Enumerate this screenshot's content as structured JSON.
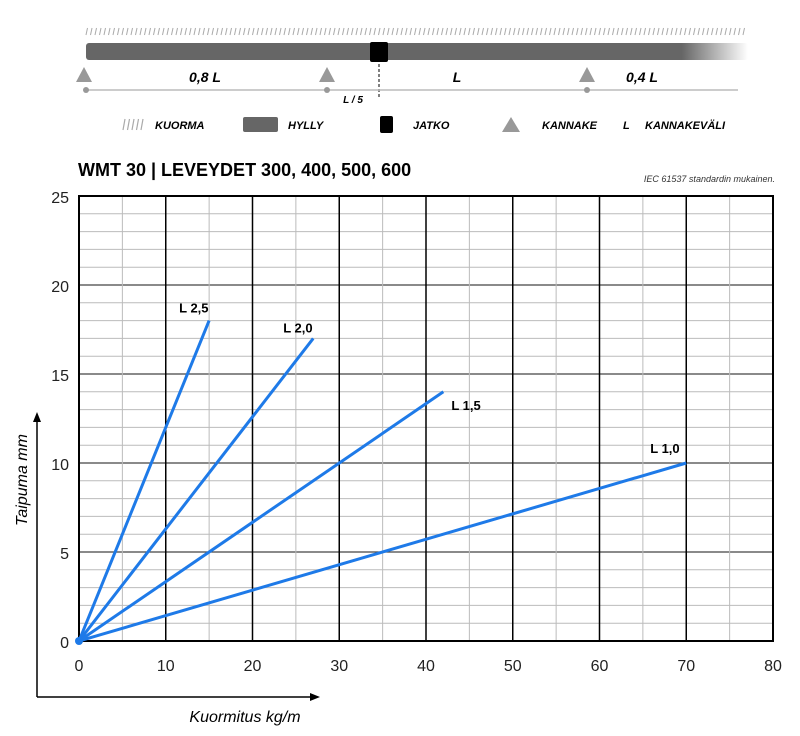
{
  "diagram": {
    "spans": [
      "0,8 L",
      "L",
      "0,4 L"
    ],
    "joint_offset": "L / 5",
    "legend": [
      {
        "symbol": "hatch",
        "label": "KUORMA"
      },
      {
        "symbol": "bar",
        "label": "HYLLY"
      },
      {
        "symbol": "square",
        "label": "JATKO"
      },
      {
        "symbol": "triangle",
        "label": "KANNAKE"
      },
      {
        "symbol": "L",
        "label": "KANNAKEVÄLI"
      }
    ],
    "colors": {
      "shelf": "#666666",
      "joint": "#000000",
      "support": "#999999"
    }
  },
  "chart_data": {
    "type": "line",
    "title": "WMT 30 | LEVEYDET 300, 400, 500, 600",
    "subtitle": "IEC 61537 standardin mukainen.",
    "xlabel": "Kuormitus kg/m",
    "ylabel": "Taipuma mm",
    "xlim": [
      0,
      80
    ],
    "ylim": [
      0,
      25
    ],
    "xticks": [
      "0",
      "10",
      "20",
      "30",
      "40",
      "50",
      "60",
      "70",
      "80"
    ],
    "yticks": [
      "0",
      "5",
      "10",
      "15",
      "20",
      "25"
    ],
    "grid": true,
    "line_color": "#1e7ae8",
    "series": [
      {
        "name": "L 2,5",
        "x": [
          0,
          15
        ],
        "y": [
          0,
          18
        ]
      },
      {
        "name": "L 2,0",
        "x": [
          0,
          27
        ],
        "y": [
          0,
          17
        ]
      },
      {
        "name": "L 1,5",
        "x": [
          0,
          42
        ],
        "y": [
          0,
          14
        ]
      },
      {
        "name": "L 1,0",
        "x": [
          0,
          70
        ],
        "y": [
          0,
          10
        ]
      }
    ]
  }
}
